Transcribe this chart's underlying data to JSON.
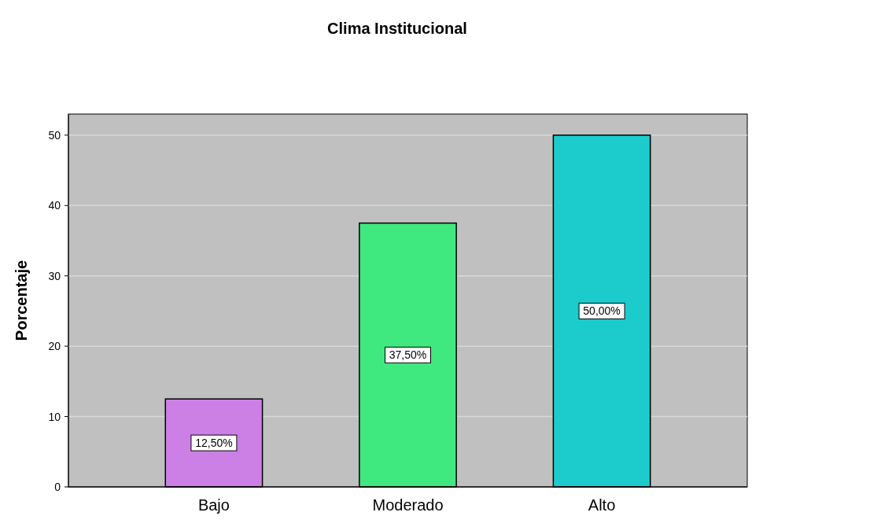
{
  "chart_data": {
    "type": "bar",
    "title": "Clima Institucional",
    "ylabel": "Porcentaje",
    "categories": [
      "Bajo",
      "Moderado",
      "Alto"
    ],
    "values": [
      12.5,
      37.5,
      50
    ],
    "colors": [
      "#cc80e6",
      "#40e880",
      "#1ccccc"
    ],
    "value_labels": [
      "12,50%",
      "37,50%",
      "50,00%"
    ],
    "ylim": [
      0,
      53
    ],
    "yticks": [
      0,
      10,
      20,
      30,
      40,
      50
    ],
    "grid": "y"
  }
}
